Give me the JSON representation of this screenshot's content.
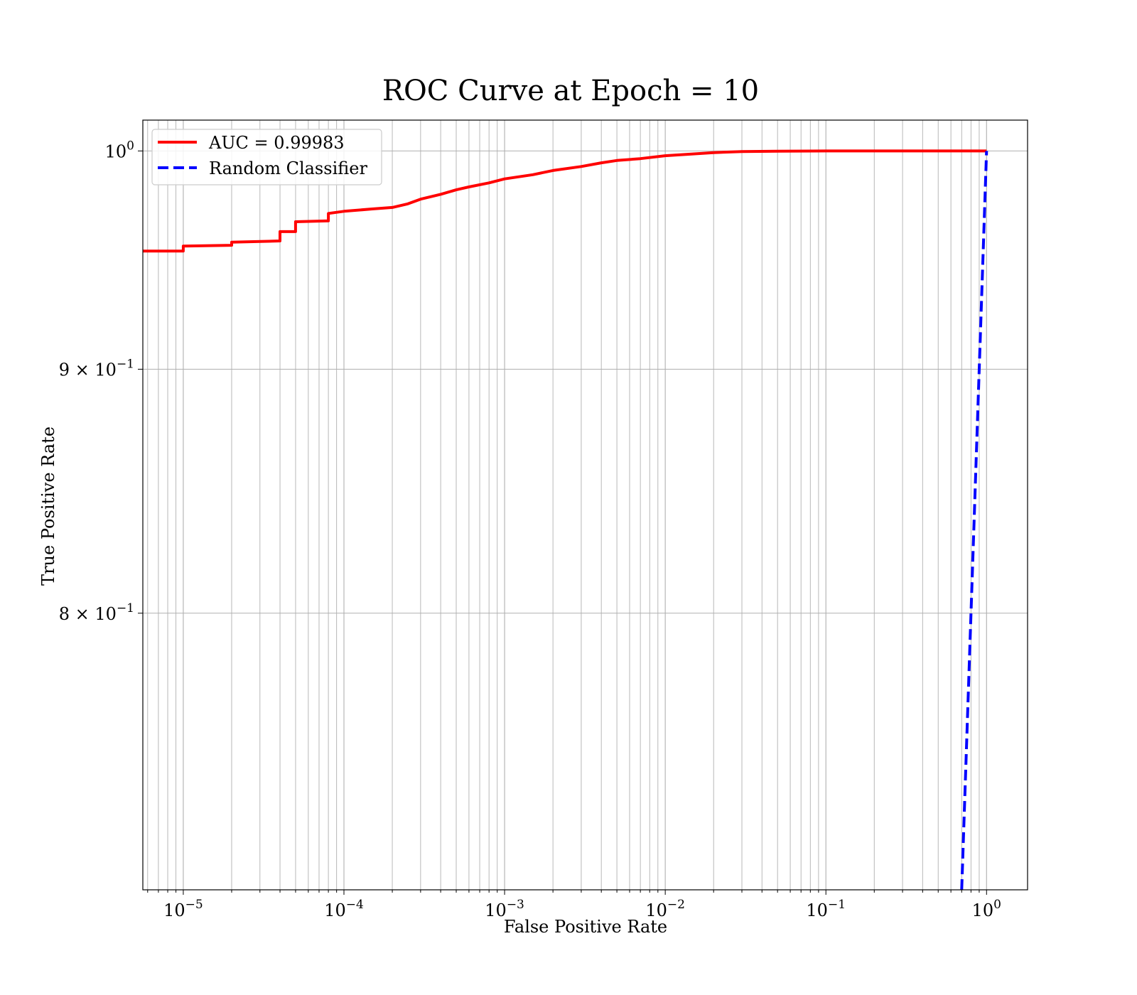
{
  "chart_data": {
    "type": "line",
    "title": "ROC Curve at Epoch = 10",
    "xlabel": "False Positive Rate",
    "ylabel": "True Positive Rate",
    "xscale": "log",
    "yscale": "log",
    "xlim": [
      5.6e-06,
      1.8
    ],
    "ylim": [
      0.7,
      1.015
    ],
    "grid": "both (major and minor)",
    "legend_position": "top-left",
    "x_ticks": [
      {
        "value": 1e-05,
        "base": "10",
        "exp": "−5"
      },
      {
        "value": 0.0001,
        "base": "10",
        "exp": "−4"
      },
      {
        "value": 0.001,
        "base": "10",
        "exp": "−3"
      },
      {
        "value": 0.01,
        "base": "10",
        "exp": "−2"
      },
      {
        "value": 0.1,
        "base": "10",
        "exp": "−1"
      },
      {
        "value": 1,
        "base": "10",
        "exp": "0"
      }
    ],
    "y_ticks": [
      {
        "value": 1.0,
        "base": "10",
        "exp": "0"
      },
      {
        "value": 0.9,
        "base": "9 × 10",
        "exp": "−1"
      },
      {
        "value": 0.8,
        "base": "8 × 10",
        "exp": "−1"
      }
    ],
    "series": [
      {
        "name": "AUC = 0.99983",
        "color": "#ff0000",
        "style": "solid",
        "x": [
          5.6e-06,
          1e-05,
          1e-05,
          2e-05,
          2e-05,
          4e-05,
          4e-05,
          5e-05,
          5e-05,
          8e-05,
          8e-05,
          0.0001,
          0.00015,
          0.0002,
          0.00025,
          0.0003,
          0.0004,
          0.0005,
          0.0006,
          0.0008,
          0.001,
          0.0015,
          0.002,
          0.003,
          0.004,
          0.005,
          0.007,
          0.01,
          0.02,
          0.03,
          0.05,
          0.1,
          1
        ],
        "y": [
          0.9528,
          0.9528,
          0.9551,
          0.9555,
          0.9569,
          0.9575,
          0.9618,
          0.9618,
          0.9664,
          0.9668,
          0.9703,
          0.9713,
          0.9724,
          0.9731,
          0.9748,
          0.977,
          0.9793,
          0.9814,
          0.9828,
          0.9847,
          0.9866,
          0.9886,
          0.9906,
          0.9925,
          0.9943,
          0.9954,
          0.9963,
          0.9977,
          0.9992,
          0.9997,
          0.9999,
          1.0,
          1.0
        ]
      },
      {
        "name": "Random Classifier",
        "color": "#0000ff",
        "style": "dashed",
        "x": [
          0.7,
          1
        ],
        "y": [
          0.7,
          1
        ]
      }
    ]
  }
}
